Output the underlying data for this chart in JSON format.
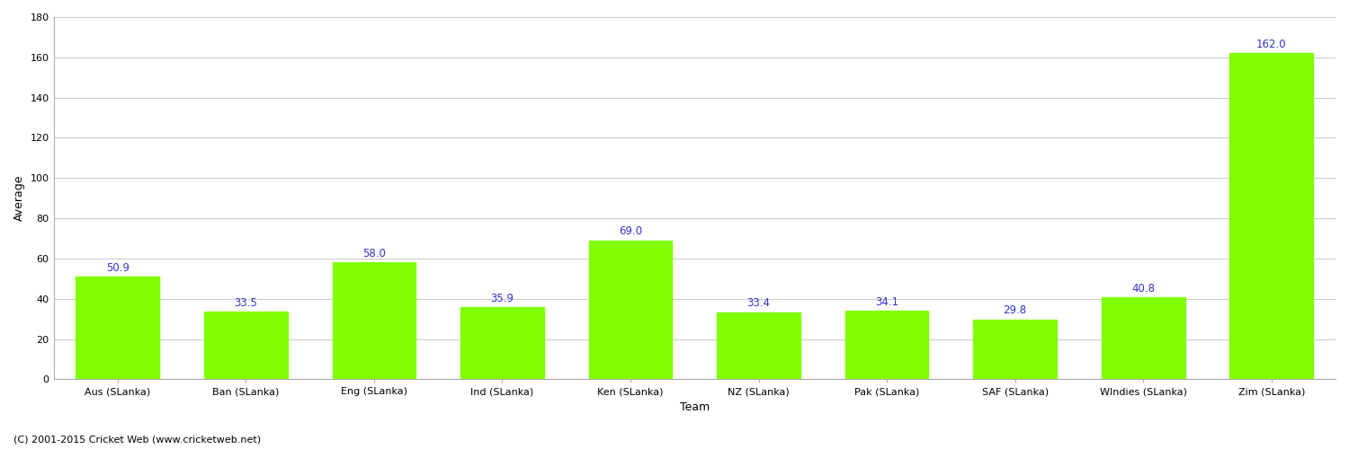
{
  "categories": [
    "Aus (SLanka)",
    "Ban (SLanka)",
    "Eng (SLanka)",
    "Ind (SLanka)",
    "Ken (SLanka)",
    "NZ (SLanka)",
    "Pak (SLanka)",
    "SAF (SLanka)",
    "WIndies (SLanka)",
    "Zim (SLanka)"
  ],
  "values": [
    50.9,
    33.5,
    58.0,
    35.9,
    69.0,
    33.4,
    34.1,
    29.8,
    40.8,
    162.0
  ],
  "bar_color": "#7fff00",
  "label_color": "#3333cc",
  "xlabel": "Team",
  "ylabel": "Average",
  "ylim": [
    0,
    180
  ],
  "yticks": [
    0,
    20,
    40,
    60,
    80,
    100,
    120,
    140,
    160,
    180
  ],
  "background_color": "#ffffff",
  "grid_color": "#cccccc",
  "footer": "(C) 2001-2015 Cricket Web (www.cricketweb.net)",
  "label_fontsize": 9,
  "tick_fontsize": 8,
  "footer_fontsize": 8,
  "value_fontsize": 8.5
}
